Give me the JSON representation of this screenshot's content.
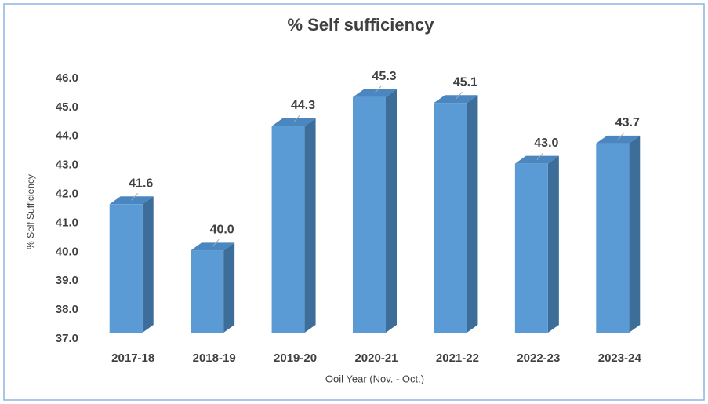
{
  "chart_data": {
    "type": "bar3d",
    "title": "% Self sufficiency",
    "x_label": "Ooil Year (Nov. - Oct.)",
    "y_label": "% Self Sufficiency",
    "categories": [
      "2017-18",
      "2018-19",
      "2019-20",
      "2020-21",
      "2021-22",
      "2022-23",
      "2023-24"
    ],
    "values": [
      41.6,
      40.0,
      44.3,
      45.3,
      45.1,
      43.0,
      43.7
    ],
    "value_labels": [
      "41.6",
      "40.0",
      "44.3",
      "45.3",
      "45.1",
      "43.0",
      "43.7"
    ],
    "color": "#5b9bd5",
    "ylim": [
      37,
      46
    ],
    "yticks": [
      {
        "value": 37,
        "label": "37.0"
      },
      {
        "value": 38,
        "label": "38.0"
      },
      {
        "value": 39,
        "label": "39.0"
      },
      {
        "value": 40,
        "label": "40.0"
      },
      {
        "value": 41,
        "label": "41.0"
      },
      {
        "value": 42,
        "label": "42.0"
      },
      {
        "value": 43,
        "label": "43.0"
      },
      {
        "value": 44,
        "label": "44.0"
      },
      {
        "value": 45,
        "label": "45.0"
      },
      {
        "value": 46,
        "label": "46.0"
      }
    ],
    "grid": false
  }
}
